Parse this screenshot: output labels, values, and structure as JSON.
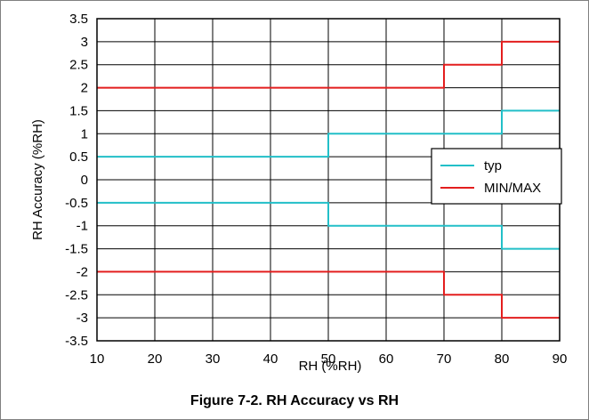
{
  "chart_data": {
    "type": "line",
    "caption": "Figure 7-2. RH Accuracy vs RH",
    "xlabel": "RH (%RH)",
    "ylabel": "RH Accuracy (%RH)",
    "xlim": [
      10,
      90
    ],
    "ylim": [
      -3.5,
      3.5
    ],
    "xticks": [
      10,
      20,
      30,
      40,
      50,
      60,
      70,
      80,
      90
    ],
    "yticks": [
      3.5,
      3,
      2.5,
      2,
      1.5,
      1,
      0.5,
      0,
      -0.5,
      -1,
      -1.5,
      -2,
      -2.5,
      -3,
      -3.5
    ],
    "grid": true,
    "legend_position": "right",
    "legend": [
      {
        "label": "typ",
        "color": "#22bfc8"
      },
      {
        "label": "MIN/MAX",
        "color": "#e31e1e"
      }
    ],
    "series": [
      {
        "legend": 0,
        "color": "#22bfc8",
        "x": [
          10,
          50,
          50,
          80,
          80,
          90
        ],
        "y": [
          0.5,
          0.5,
          1,
          1,
          1.5,
          1.5
        ]
      },
      {
        "legend": 0,
        "color": "#22bfc8",
        "x": [
          10,
          50,
          50,
          80,
          80,
          90
        ],
        "y": [
          -0.5,
          -0.5,
          -1,
          -1,
          -1.5,
          -1.5
        ]
      },
      {
        "legend": 1,
        "color": "#e31e1e",
        "x": [
          10,
          70,
          70,
          80,
          80,
          90
        ],
        "y": [
          2,
          2,
          2.5,
          2.5,
          3,
          3
        ]
      },
      {
        "legend": 1,
        "color": "#e31e1e",
        "x": [
          10,
          70,
          70,
          80,
          80,
          90
        ],
        "y": [
          -2,
          -2,
          -2.5,
          -2.5,
          -3,
          -3
        ]
      }
    ]
  }
}
